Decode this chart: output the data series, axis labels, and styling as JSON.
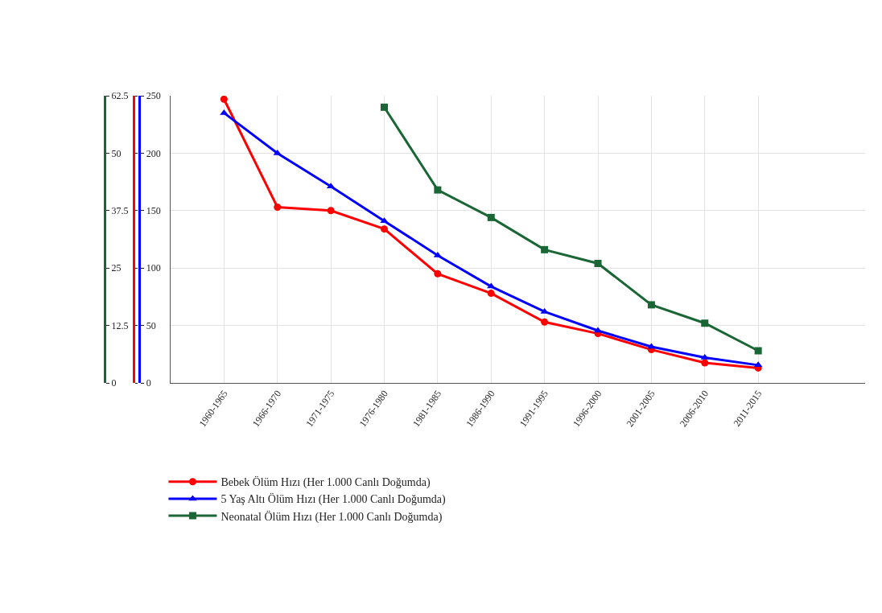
{
  "chart_data": {
    "type": "line",
    "categories": [
      "1960-1965",
      "1966-1970",
      "1971-1975",
      "1976-1980",
      "1981-1985",
      "1986-1990",
      "1991-1995",
      "1996-2000",
      "2001-2005",
      "2006-2010",
      "2011-2015"
    ],
    "series": [
      {
        "name": "Bebek Ölüm Hızı (Her 1.000 Canlı Doğumda)",
        "color": "#ff0000",
        "marker": "circle",
        "values": [
          247,
          153,
          150,
          134,
          95,
          78,
          53,
          43,
          29,
          17.5,
          13
        ]
      },
      {
        "name": "5 Yaş Altı Ölüm Hızı (Her 1.000 Canlı Doğumda)",
        "color": "#0000ff",
        "marker": "triangle",
        "values": [
          235,
          200,
          171,
          141,
          111,
          84,
          62,
          45.5,
          31.5,
          22,
          15.5
        ]
      },
      {
        "name": "Neonatal Ölüm Hızı (Her 1.000 Canlı Doğumda)",
        "color": "#1a6634",
        "marker": "square",
        "axis": "y3",
        "values": [
          null,
          null,
          null,
          60,
          42,
          36,
          29,
          26,
          17,
          13,
          7
        ]
      }
    ],
    "ylim": [
      0,
      250
    ],
    "yticks": [
      0,
      50,
      100,
      150,
      200,
      250
    ],
    "y3lim": [
      0,
      62.5
    ],
    "y3ticks": [
      0,
      12.5,
      25,
      37.5,
      50,
      62.5
    ],
    "grid": true,
    "legend": "bottom left",
    "line_style": "solid"
  }
}
